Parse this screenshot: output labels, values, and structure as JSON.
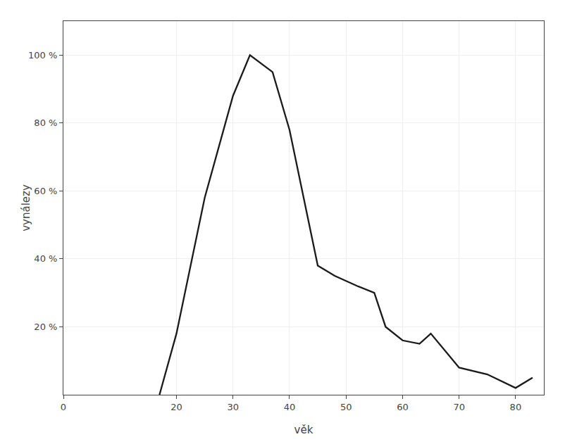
{
  "chart_data": {
    "type": "line",
    "x": [
      17,
      20,
      25,
      30,
      33,
      37,
      40,
      45,
      48,
      52,
      55,
      57,
      60,
      63,
      65,
      70,
      75,
      80,
      83
    ],
    "values": [
      0,
      18,
      58,
      88,
      100,
      95,
      78,
      38,
      35,
      32,
      30,
      20,
      16,
      15,
      18,
      8,
      6,
      2,
      5
    ],
    "color": "#1a1a1a",
    "xlabel": "věk",
    "ylabel": "vynálezy",
    "xlim": [
      0,
      85
    ],
    "ylim": [
      0,
      110
    ],
    "xticks": [
      0,
      20,
      30,
      40,
      50,
      60,
      70,
      80
    ],
    "yticks": [
      {
        "value": 20,
        "label": "20 %"
      },
      {
        "value": 40,
        "label": "40 %"
      },
      {
        "value": 60,
        "label": "60 %"
      },
      {
        "value": 80,
        "label": "80 %"
      },
      {
        "value": 100,
        "label": "100 %"
      }
    ],
    "grid": true
  }
}
